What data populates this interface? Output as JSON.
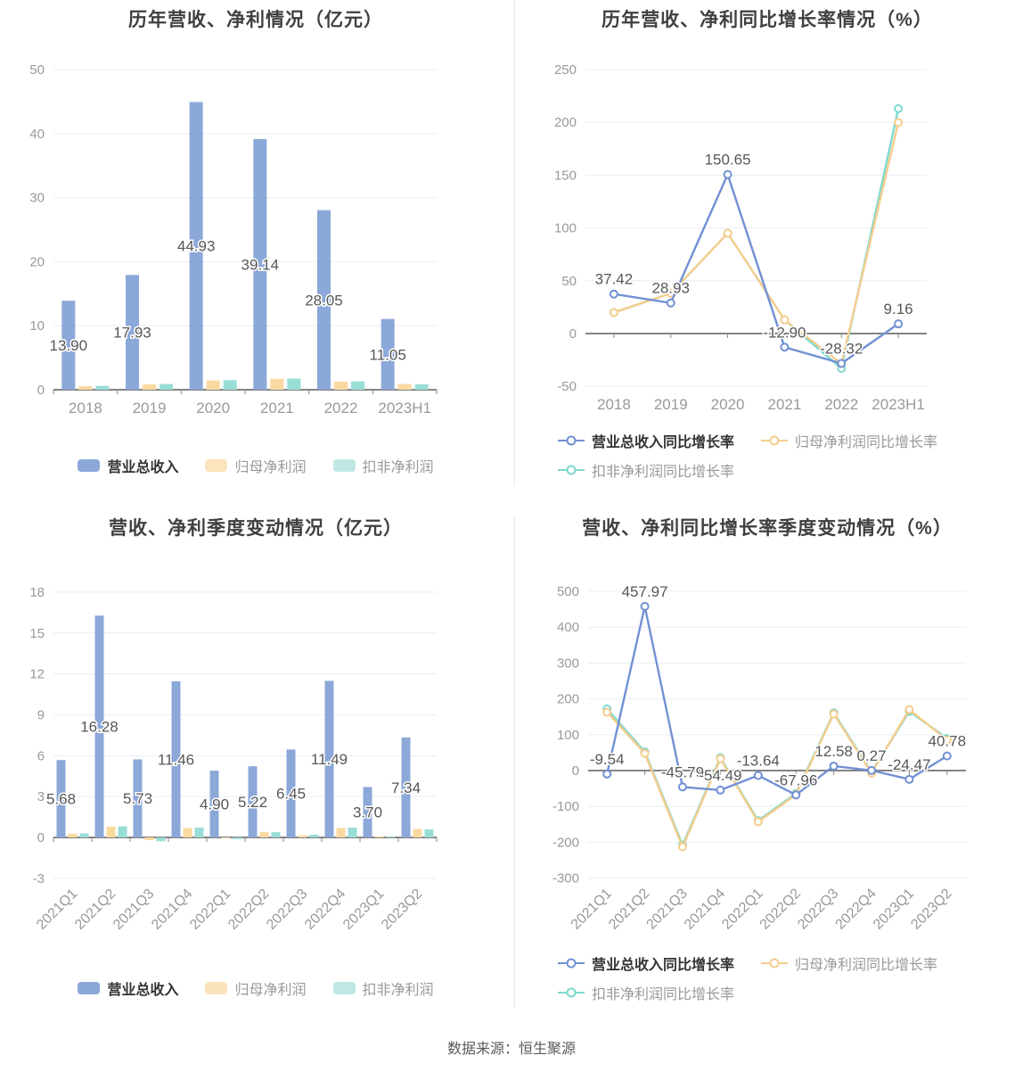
{
  "footer": {
    "text": "数据来源：恒生聚源"
  },
  "colors": {
    "bar_blue": "#8CA8D8",
    "bar_orange": "#FAD9A1",
    "bar_teal": "#99DED6",
    "line_blue": "#7191D3",
    "line_orange": "#F6CD8D",
    "line_teal": "#7DD8CE",
    "gridline": "#E8EDF6",
    "axis": "#848484",
    "axis_label": "#999999",
    "value_label": "#575757",
    "title": "#404040"
  },
  "chart_data": [
    {
      "id": "annual-amount",
      "type": "bar",
      "title": "历年营收、净利情况（亿元）",
      "categories": [
        "2018",
        "2019",
        "2020",
        "2021",
        "2022",
        "2023H1"
      ],
      "ylim": [
        0,
        50
      ],
      "ystep": 10,
      "grid": true,
      "legend_position": "bottom",
      "series": [
        {
          "name": "营业总收入",
          "color": "#8CA8D8",
          "legend_color": "#8CA8D8",
          "values": [
            13.9,
            17.93,
            44.93,
            39.14,
            28.05,
            11.05
          ],
          "labels": [
            "13.90",
            "17.93",
            "44.93",
            "39.14",
            "28.05",
            "11.05"
          ]
        },
        {
          "name": "归母净利润",
          "color": "#FAD9A1",
          "legend_color": "#FBE3BD",
          "values": [
            0.55,
            0.85,
            1.45,
            1.7,
            1.25,
            0.9
          ]
        },
        {
          "name": "扣非净利润",
          "color": "#99DED6",
          "legend_color": "#BFE8E2",
          "values": [
            0.6,
            0.9,
            1.5,
            1.75,
            1.3,
            0.85
          ]
        }
      ]
    },
    {
      "id": "annual-growth",
      "type": "line",
      "title": "历年营收、净利同比增长率情况（%）",
      "categories": [
        "2018",
        "2019",
        "2020",
        "2021",
        "2022",
        "2023H1"
      ],
      "ylim": [
        -50,
        250
      ],
      "ystep": 50,
      "grid": true,
      "legend_position": "bottom",
      "series": [
        {
          "name": "营业总收入同比增长率",
          "color": "#7191D3",
          "values": [
            37.42,
            28.93,
            150.65,
            -12.9,
            -28.32,
            9.16
          ],
          "labels": [
            "37.42",
            "28.93",
            "150.65",
            "-12.90",
            "-28.32",
            "9.16"
          ]
        },
        {
          "name": "归母净利润同比增长率",
          "color": "#F6CD8D",
          "values": [
            20,
            38,
            95,
            13,
            -28.5,
            200
          ]
        },
        {
          "name": "扣非净利润同比增长率",
          "color": "#7DD8CE",
          "values": [
            20,
            38,
            95,
            13,
            -33,
            213
          ]
        }
      ]
    },
    {
      "id": "quarterly-amount",
      "type": "bar",
      "title": "营收、净利季度变动情况（亿元）",
      "categories": [
        "2021Q1",
        "2021Q2",
        "2021Q3",
        "2021Q4",
        "2022Q1",
        "2022Q2",
        "2022Q3",
        "2022Q4",
        "2023Q1",
        "2023Q2"
      ],
      "ylim": [
        -3,
        18
      ],
      "ystep": 3,
      "grid": true,
      "legend_position": "bottom",
      "series": [
        {
          "name": "营业总收入",
          "color": "#8CA8D8",
          "legend_color": "#8CA8D8",
          "values": [
            5.68,
            16.28,
            5.73,
            11.46,
            4.9,
            5.22,
            6.45,
            11.49,
            3.7,
            7.34
          ],
          "labels": [
            "5.68",
            "16.28",
            "5.73",
            "11.46",
            "4.90",
            "5.22",
            "6.45",
            "11.49",
            "3.70",
            "7.34"
          ]
        },
        {
          "name": "归母净利润",
          "color": "#FAD9A1",
          "legend_color": "#FBE3BD",
          "values": [
            0.28,
            0.8,
            -0.2,
            0.68,
            -0.06,
            0.4,
            0.15,
            0.7,
            0.06,
            0.62
          ]
        },
        {
          "name": "扣非净利润",
          "color": "#99DED6",
          "legend_color": "#BFE8E2",
          "values": [
            0.3,
            0.82,
            -0.28,
            0.72,
            -0.12,
            0.38,
            0.2,
            0.72,
            0.05,
            0.6
          ]
        }
      ]
    },
    {
      "id": "quarterly-growth",
      "type": "line",
      "title": "营收、净利同比增长率季度变动情况（%）",
      "categories": [
        "2021Q1",
        "2021Q2",
        "2021Q3",
        "2021Q4",
        "2022Q1",
        "2022Q2",
        "2022Q3",
        "2022Q4",
        "2023Q1",
        "2023Q2"
      ],
      "ylim": [
        -300,
        500
      ],
      "ystep": 100,
      "grid": true,
      "legend_position": "bottom",
      "series": [
        {
          "name": "营业总收入同比增长率",
          "color": "#7191D3",
          "values": [
            -9.54,
            457.97,
            -45.79,
            -54.49,
            -13.64,
            -67.96,
            12.58,
            0.27,
            -24.47,
            40.78
          ],
          "labels": [
            "-9.54",
            "457.97",
            "-45.79",
            "-54.49",
            "-13.64",
            "-67.96",
            "12.58",
            "0.27",
            "-24.47",
            "40.78"
          ]
        },
        {
          "name": "归母净利润同比增长率",
          "color": "#F6CD8D",
          "values": [
            163,
            48,
            -213,
            33,
            -143,
            -67,
            158,
            -7,
            170,
            85
          ]
        },
        {
          "name": "扣非净利润同比增长率",
          "color": "#7DD8CE",
          "values": [
            172,
            52,
            -208,
            36,
            -140,
            -64,
            161,
            -4,
            165,
            90
          ]
        }
      ]
    }
  ]
}
